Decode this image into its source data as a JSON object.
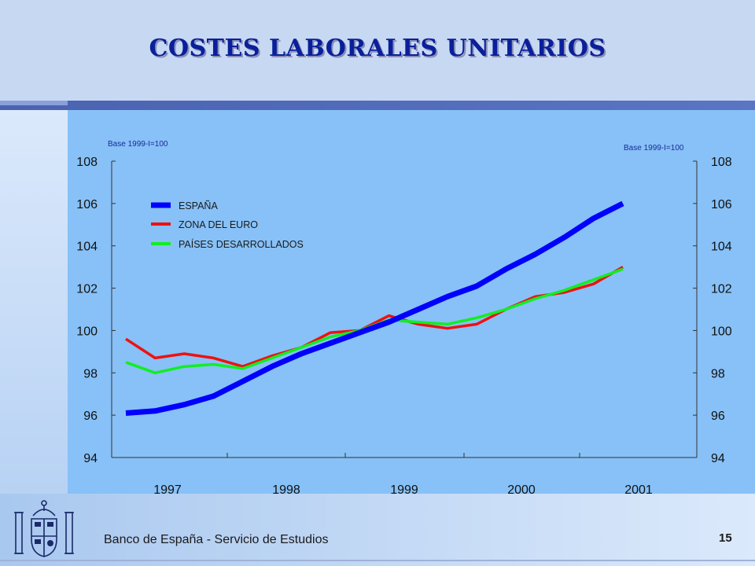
{
  "slide": {
    "title": "COSTES LABORALES UNITARIOS",
    "footer": "Banco de España - Servicio de Estudios",
    "page_number": "15"
  },
  "colors": {
    "espana": "#0000ff",
    "zona_euro": "#ee1111",
    "paises": "#11ee22",
    "chart_bg": "#87c1f7"
  },
  "chart_data": {
    "type": "line",
    "base_note_left": "Base 1999-I=100",
    "base_note_right": "Base 1999-I=100",
    "x": [
      "1996-IV",
      "1997-I",
      "1997-II",
      "1997-III",
      "1997-IV",
      "1998-I",
      "1998-II",
      "1998-III",
      "1998-IV",
      "1999-I",
      "1999-II",
      "1999-III",
      "1999-IV",
      "2000-I",
      "2000-II",
      "2000-III",
      "2000-IV",
      "2001-I"
    ],
    "x_tick_labels": [
      "1997",
      "1998",
      "1999",
      "2000",
      "2001"
    ],
    "ylim": [
      94,
      108
    ],
    "y_ticks": [
      94,
      96,
      98,
      100,
      102,
      104,
      106,
      108
    ],
    "legend_position": "top-left",
    "series": [
      {
        "name": "ESPAÑA",
        "color": "#0000ff",
        "values": [
          96.1,
          96.2,
          96.5,
          96.9,
          97.6,
          98.3,
          98.9,
          99.4,
          99.9,
          100.4,
          101.0,
          101.6,
          102.1,
          102.9,
          103.6,
          104.4,
          105.3,
          106.0
        ]
      },
      {
        "name": "ZONA DEL EURO",
        "color": "#ee1111",
        "values": [
          99.6,
          98.7,
          98.9,
          98.7,
          98.3,
          98.8,
          99.2,
          99.9,
          100.0,
          100.7,
          100.3,
          100.1,
          100.3,
          101.0,
          101.6,
          101.8,
          102.2,
          103.0
        ]
      },
      {
        "name": "PAÍSES DESARROLLADOS",
        "color": "#11ee22",
        "values": [
          98.5,
          98.0,
          98.3,
          98.4,
          98.2,
          98.7,
          99.2,
          99.7,
          100.0,
          100.5,
          100.4,
          100.3,
          100.6,
          101.0,
          101.5,
          101.9,
          102.4,
          102.9
        ]
      }
    ]
  }
}
